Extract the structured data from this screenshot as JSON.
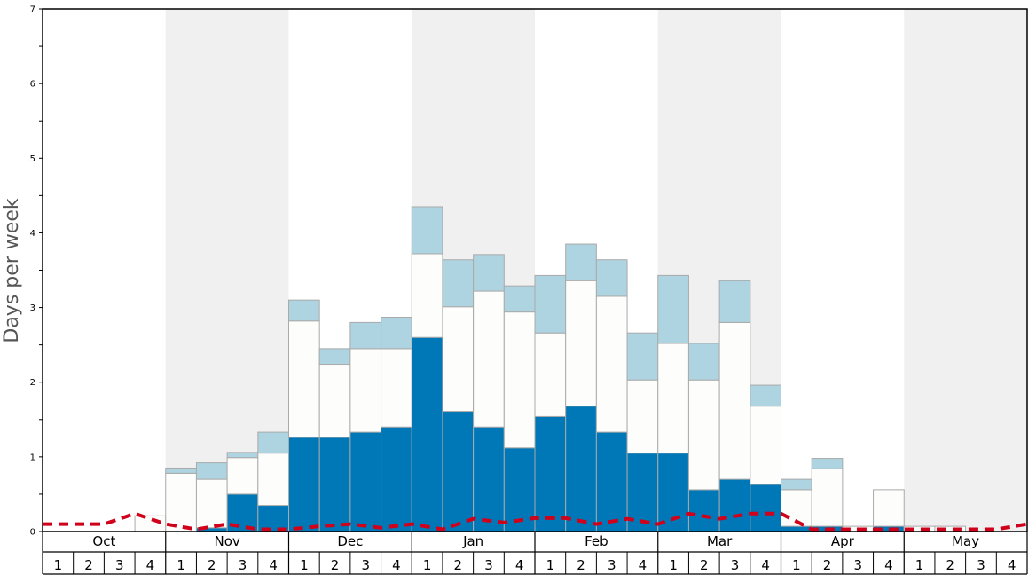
{
  "chart_data": {
    "type": "bar",
    "ylabel": "Days per week",
    "ylim": [
      0,
      7
    ],
    "yticks": [
      "0",
      "1",
      "2",
      "3",
      "4",
      "5",
      "6",
      "7"
    ],
    "months": [
      "Oct",
      "Nov",
      "Dec",
      "Jan",
      "Feb",
      "Mar",
      "Apr",
      "May"
    ],
    "week_labels": [
      "1",
      "2",
      "3",
      "4"
    ],
    "colors": {
      "dark": "#0077b6",
      "white": "#fdfdfb",
      "light": "#add4e0",
      "trend": "#d0021b",
      "shade": "#f0f0f1"
    },
    "series": [
      {
        "values": [
          0,
          0,
          0,
          0,
          0,
          0.05,
          0.5,
          0.35,
          1.26,
          1.26,
          1.33,
          1.4,
          2.6,
          1.61,
          1.4,
          1.12,
          1.54,
          1.68,
          1.33,
          1.05,
          1.05,
          0.56,
          0.7,
          0.63,
          0.07,
          0.07,
          0,
          0.07,
          0,
          0,
          0,
          0
        ]
      },
      {
        "values": [
          0,
          0,
          0,
          0.21,
          0.78,
          0.65,
          0.49,
          0.7,
          1.56,
          0.98,
          1.12,
          1.05,
          1.12,
          1.4,
          1.82,
          1.82,
          1.12,
          1.68,
          1.82,
          0.98,
          1.47,
          1.47,
          2.1,
          1.05,
          0.49,
          0.77,
          0.07,
          0.49,
          0.07,
          0.07,
          0,
          0
        ]
      },
      {
        "values": [
          0,
          0,
          0,
          0,
          0.07,
          0.22,
          0.07,
          0.28,
          0.28,
          0.21,
          0.35,
          0.42,
          0.63,
          0.63,
          0.49,
          0.35,
          0.77,
          0.49,
          0.49,
          0.63,
          0.91,
          0.49,
          0.56,
          0.28,
          0.14,
          0.14,
          0,
          0,
          0,
          0,
          0,
          0
        ]
      }
    ],
    "trend": [
      0.1,
      0.1,
      0.1,
      0.24,
      0.1,
      0.03,
      0.1,
      0.03,
      0.03,
      0.07,
      0.1,
      0.05,
      0.1,
      0.03,
      0.17,
      0.12,
      0.18,
      0.18,
      0.1,
      0.17,
      0.1,
      0.24,
      0.17,
      0.24,
      0.24,
      0.03,
      0.03,
      0.03,
      0.03,
      0.03,
      0.03,
      0.03,
      0.1
    ]
  }
}
